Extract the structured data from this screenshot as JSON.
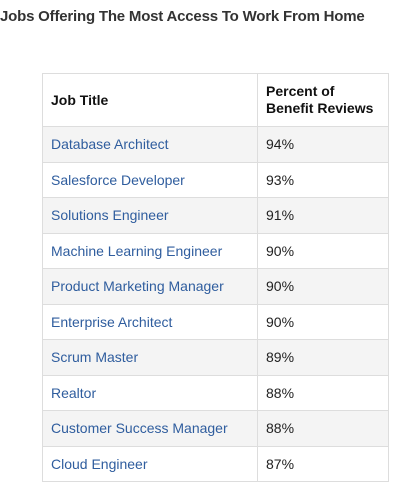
{
  "title": "Jobs Offering The Most Access To Work From Home",
  "table": {
    "headers": [
      "Job Title",
      "Percent of\nBenefit Reviews"
    ],
    "rows": [
      {
        "job": "Database Architect",
        "percent": "94%"
      },
      {
        "job": "Salesforce Developer",
        "percent": "93%"
      },
      {
        "job": "Solutions Engineer",
        "percent": "91%"
      },
      {
        "job": "Machine Learning Engineer",
        "percent": "90%"
      },
      {
        "job": "Product Marketing Manager",
        "percent": "90%"
      },
      {
        "job": "Enterprise Architect",
        "percent": "90%"
      },
      {
        "job": "Scrum Master",
        "percent": "89%"
      },
      {
        "job": "Realtor",
        "percent": "88%"
      },
      {
        "job": "Customer Success Manager",
        "percent": "88%"
      },
      {
        "job": "Cloud Engineer",
        "percent": "87%"
      }
    ]
  },
  "colors": {
    "link": "#2f5d9e",
    "row_stripe": "#f4f4f4",
    "border": "#dddddd"
  }
}
